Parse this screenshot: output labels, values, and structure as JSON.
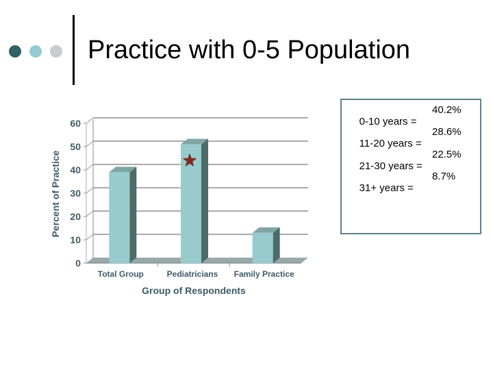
{
  "slide": {
    "title": "Practice with 0-5 Population",
    "colors": {
      "dot_dark": "#2f6266",
      "dot_mid": "#93cbd0",
      "dot_light": "#c9cccc"
    }
  },
  "chart_data": {
    "type": "bar",
    "categories": [
      "Total Group",
      "Pediatricians",
      "Family Practice"
    ],
    "values": [
      39,
      51,
      13
    ],
    "xlabel": "Group of Respondents",
    "ylabel": "Percent of Practice",
    "ylim": [
      0,
      60
    ],
    "yticks": [
      0,
      10,
      20,
      30,
      40,
      50,
      60
    ],
    "grid": true,
    "highlight": {
      "category": "Pediatricians",
      "marker": "star",
      "color": "#7a2e22"
    },
    "colors": {
      "bar_front": "#98cbcd",
      "bar_side": "#4d6b68",
      "bar_top": "#7fa6a4",
      "axis_text": "#3d5a66"
    }
  },
  "info_box": {
    "items": [
      {
        "label": "0-10 years =",
        "value": "40.2%"
      },
      {
        "label": "11-20 years =",
        "value": "28.6%"
      },
      {
        "label": "21-30 years =",
        "value": "22.5%"
      },
      {
        "label": "31+ years =",
        "value": "8.7%"
      }
    ]
  }
}
